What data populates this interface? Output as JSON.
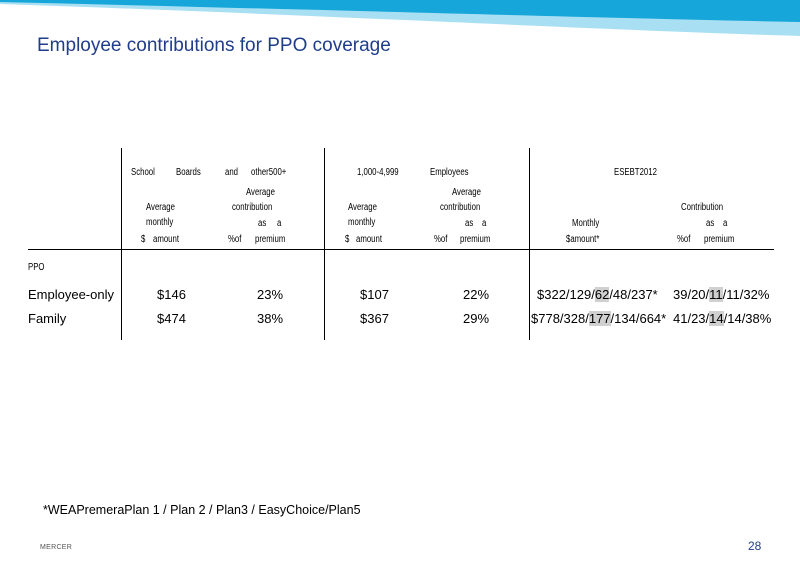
{
  "slide": {
    "title": "Employee contributions for PPO coverage",
    "footnote": "*WEAPremeraPlan 1 / Plan 2 / Plan3 / EasyChoice/Plan5",
    "brand": "MERCER",
    "page_number": "28"
  },
  "colors": {
    "title": "#1f3d8a",
    "banner_dark": "#16a6d9",
    "banner_light": "#a9dff3"
  },
  "table": {
    "groups": {
      "g1": {
        "w1": "School",
        "w2": "Boards",
        "w3": "and",
        "w4": "other500+"
      },
      "g2": {
        "w1": "1,000-4,999",
        "w2": "Employees"
      },
      "g3": {
        "w1": "ESEBT2012"
      }
    },
    "subheaders": {
      "avg_l1": "Average",
      "monthly_l2": "monthly",
      "dollar_sym": "$",
      "amount_word": "amount",
      "avg_contrib_l1": "Average",
      "contribution_l2": "contribution",
      "as_word": "as",
      "a_word": "a",
      "pct_of": "%of",
      "premium_word": "premium",
      "monthly_cap": "Monthly",
      "amount_star": "$amount*",
      "contribution_cap": "Contribution"
    },
    "section_label": "PPO",
    "rows": [
      {
        "label": "Employee-only",
        "c1": "$146",
        "c2": "23%",
        "c3": "$107",
        "c4": "22%",
        "c5": {
          "pre": "$322/129/",
          "hl": "62",
          "post": "/48/237*"
        },
        "c6": {
          "pre": "39/20/",
          "hl": "11",
          "post": "/11/32%"
        }
      },
      {
        "label": "Family",
        "c1": "$474",
        "c2": "38%",
        "c3": "$367",
        "c4": "29%",
        "c5": {
          "pre": "$778/328/",
          "hl": "177",
          "post": "/134/664*"
        },
        "c6": {
          "pre": "41/23/",
          "hl": "14",
          "post": "/14/38%"
        }
      }
    ]
  }
}
